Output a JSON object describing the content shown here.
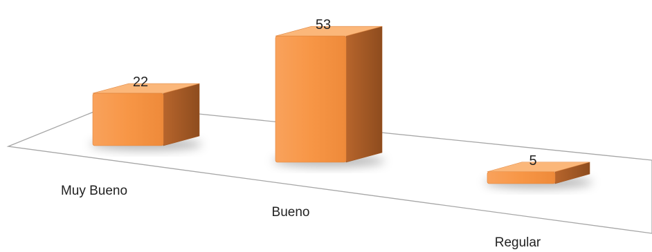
{
  "chart_data": {
    "type": "bar",
    "style": "3d-perspective",
    "categories": [
      "Muy Bueno",
      "Bueno",
      "Regular"
    ],
    "values": [
      22,
      53,
      5
    ],
    "data_labels": [
      "22",
      "53",
      "5"
    ],
    "title": "",
    "xlabel": "",
    "ylabel": "",
    "ylim": [
      0,
      60
    ],
    "grid": false,
    "legend": "none",
    "colors": {
      "bar_front": "#F79646",
      "bar_side": "#B5612A",
      "bar_top": "#FBB77A",
      "floor_line": "#A6A6A6"
    }
  }
}
